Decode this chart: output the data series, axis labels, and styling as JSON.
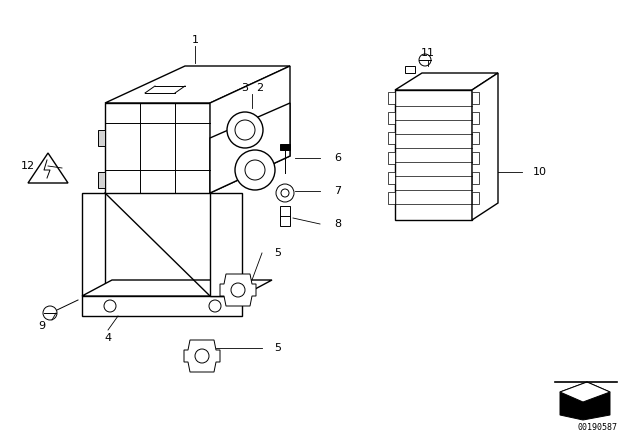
{
  "background_color": "#ffffff",
  "fig_width": 6.4,
  "fig_height": 4.48,
  "dpi": 100,
  "label_color": "#000000",
  "line_color": "#000000",
  "font_size_labels": 8,
  "watermark_text": "00190587"
}
